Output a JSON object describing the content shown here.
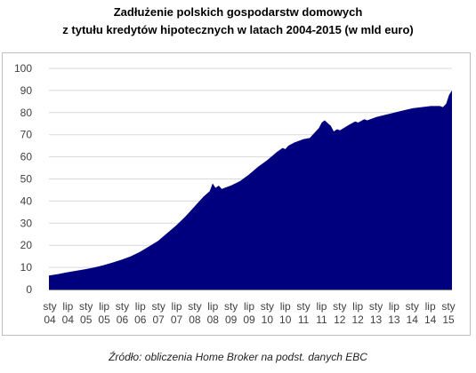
{
  "chart_data": {
    "type": "area",
    "title_line1": "Zadłużenie polskich gospodarstw domowych",
    "title_line2": "z tytułu kredytów hipotecznych w latach 2004-2015 (w mld euro)",
    "source": "Źródło: obliczenia Home Broker na podst. danych EBC",
    "ylim": [
      0,
      100
    ],
    "y_ticks": [
      0,
      10,
      20,
      30,
      40,
      50,
      60,
      70,
      80,
      90,
      100
    ],
    "grid": true,
    "legend": "none",
    "colors": {
      "fill": "#00007f",
      "grid": "#d9d9d9",
      "frame": "#bfbfbf"
    },
    "x_ticks": [
      {
        "top": "sty",
        "bottom": "04"
      },
      {
        "top": "lip",
        "bottom": "04"
      },
      {
        "top": "sty",
        "bottom": "05"
      },
      {
        "top": "lip",
        "bottom": "05"
      },
      {
        "top": "sty",
        "bottom": "06"
      },
      {
        "top": "lip",
        "bottom": "06"
      },
      {
        "top": "sty",
        "bottom": "07"
      },
      {
        "top": "lip",
        "bottom": "07"
      },
      {
        "top": "sty",
        "bottom": "08"
      },
      {
        "top": "lip",
        "bottom": "08"
      },
      {
        "top": "sty",
        "bottom": "09"
      },
      {
        "top": "lip",
        "bottom": "09"
      },
      {
        "top": "sty",
        "bottom": "10"
      },
      {
        "top": "lip",
        "bottom": "10"
      },
      {
        "top": "sty",
        "bottom": "11"
      },
      {
        "top": "lip",
        "bottom": "11"
      },
      {
        "top": "sty",
        "bottom": "12"
      },
      {
        "top": "lip",
        "bottom": "12"
      },
      {
        "top": "sty",
        "bottom": "13"
      },
      {
        "top": "lip",
        "bottom": "13"
      },
      {
        "top": "sty",
        "bottom": "14"
      },
      {
        "top": "lip",
        "bottom": "14"
      },
      {
        "top": "sty",
        "bottom": "15"
      }
    ],
    "series": [
      {
        "x": [
          2004.0,
          2004.25,
          2004.5,
          2004.75,
          2005.0,
          2005.25,
          2005.5,
          2005.75,
          2006.0,
          2006.25,
          2006.5,
          2006.75,
          2007.0,
          2007.25,
          2007.5,
          2007.75,
          2008.0,
          2008.25,
          2008.42,
          2008.5,
          2008.58,
          2008.67,
          2008.75,
          2008.83,
          2009.0,
          2009.25,
          2009.5,
          2009.75,
          2010.0,
          2010.25,
          2010.42,
          2010.5,
          2010.58,
          2010.75,
          2011.0,
          2011.17,
          2011.25,
          2011.42,
          2011.5,
          2011.58,
          2011.75,
          2011.83,
          2011.92,
          2012.0,
          2012.25,
          2012.42,
          2012.5,
          2012.67,
          2012.75,
          2013.0,
          2013.25,
          2013.5,
          2013.75,
          2014.0,
          2014.25,
          2014.5,
          2014.75,
          2014.83,
          2014.92,
          2015.0,
          2015.08
        ],
        "values": [
          6.3,
          7.0,
          7.8,
          8.5,
          9.2,
          10.0,
          11.0,
          12.2,
          13.5,
          15.0,
          17.0,
          19.5,
          22.0,
          25.5,
          29.0,
          33.0,
          37.5,
          42.0,
          44.5,
          48.0,
          46.0,
          47.0,
          45.5,
          46.0,
          47.0,
          49.0,
          52.0,
          55.5,
          58.5,
          62.0,
          64.0,
          63.5,
          65.0,
          66.5,
          68.0,
          68.5,
          70.0,
          73.0,
          75.5,
          76.5,
          74.0,
          71.5,
          72.5,
          72.0,
          74.5,
          76.0,
          75.5,
          77.0,
          76.5,
          78.0,
          79.0,
          80.0,
          81.0,
          82.0,
          82.5,
          83.0,
          83.0,
          82.5,
          84.0,
          88.0,
          90.0
        ]
      }
    ]
  }
}
